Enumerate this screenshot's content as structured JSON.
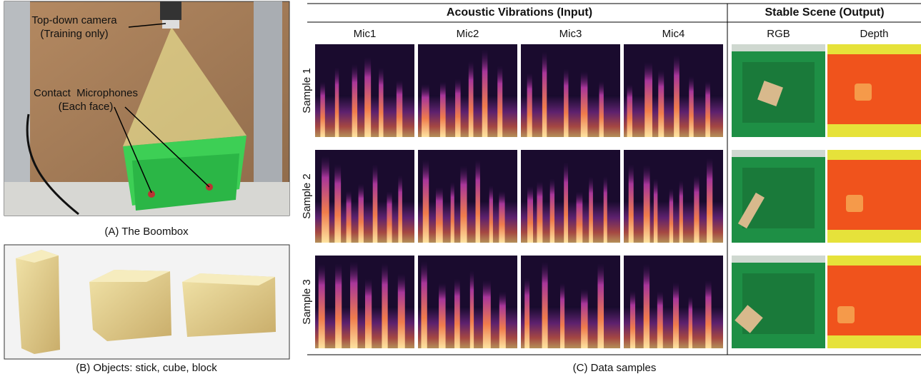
{
  "panel_a": {
    "caption": "(A) The Boombox",
    "labels": [
      "Top-down camera",
      "(Training only)",
      "Contact  Microphones",
      "(Each face)"
    ]
  },
  "panel_b": {
    "caption": "(B) Objects: stick, cube, block"
  },
  "panel_c": {
    "caption": "(C) Data samples",
    "groups": [
      "Acoustic Vibrations (Input)",
      "Stable Scene (Output)"
    ],
    "columns": [
      "Mic1",
      "Mic2",
      "Mic3",
      "Mic4",
      "RGB",
      "Depth"
    ],
    "rows": [
      "Sample 1",
      "Sample 2",
      "Sample 3"
    ]
  }
}
